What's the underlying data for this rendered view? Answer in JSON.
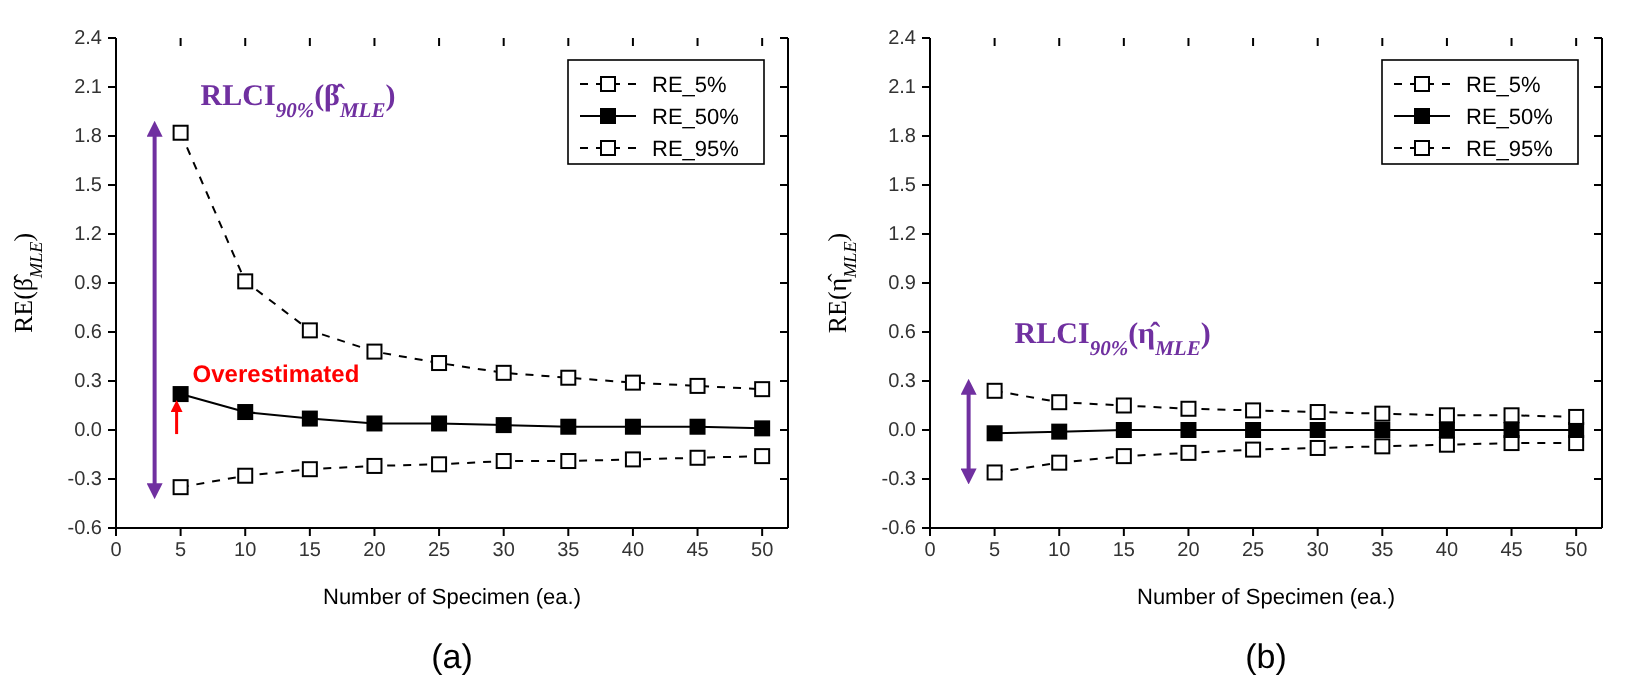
{
  "chart_data": [
    {
      "type": "line",
      "title": "(a)",
      "xlabel": "Number of Specimen (ea.)",
      "ylabel": "RE(β̂$_{MLE}$)",
      "x": [
        5,
        10,
        15,
        20,
        25,
        30,
        35,
        40,
        45,
        50
      ],
      "xlim": [
        0,
        52
      ],
      "xticks": [
        0,
        5,
        10,
        15,
        20,
        25,
        30,
        35,
        40,
        45,
        50
      ],
      "ylim": [
        -0.6,
        2.4
      ],
      "yticks": [
        -0.6,
        -0.3,
        {
          "value": 0,
          "label": "0.0"
        },
        0.3,
        0.6,
        0.9,
        1.2,
        1.5,
        1.8,
        2.1,
        2.4
      ],
      "marker": "square",
      "legend": "top right",
      "grid": false,
      "series": [
        {
          "name": "RE_5%",
          "color": "#000000",
          "line_style": "dashed",
          "values": [
            -0.35,
            -0.28,
            -0.24,
            -0.22,
            -0.21,
            -0.19,
            -0.19,
            -0.18,
            -0.17,
            -0.16
          ]
        },
        {
          "name": "RE_50%",
          "color": "#000000",
          "line_style": "solid",
          "values": [
            0.22,
            0.11,
            0.07,
            0.04,
            0.04,
            0.03,
            0.02,
            0.02,
            0.02,
            0.01
          ]
        },
        {
          "name": "RE_95%",
          "color": "#000000",
          "line_style": "dashed",
          "values": [
            1.82,
            0.91,
            0.61,
            0.48,
            0.41,
            0.35,
            0.32,
            0.29,
            0.27,
            0.25
          ]
        }
      ],
      "annotations": [
        "RLCI$_{90%}$(β̂$_{MLE}$)",
        "Overestimated"
      ]
    },
    {
      "type": "line",
      "title": "(b)",
      "xlabel": "Number of Specimen (ea.)",
      "ylabel": "RE(η̂$_{MLE}$)",
      "x": [
        5,
        10,
        15,
        20,
        25,
        30,
        35,
        40,
        45,
        50
      ],
      "xlim": [
        0,
        52
      ],
      "xticks": [
        0,
        5,
        10,
        15,
        20,
        25,
        30,
        35,
        40,
        45,
        50
      ],
      "ylim": [
        -0.6,
        2.4
      ],
      "yticks": [
        -0.6,
        -0.3,
        {
          "value": 0,
          "label": "0.0"
        },
        0.3,
        0.6,
        0.9,
        1.2,
        1.5,
        1.8,
        2.1,
        2.4
      ],
      "marker": "square",
      "legend": "top right",
      "grid": false,
      "series": [
        {
          "name": "RE_5%",
          "color": "#000000",
          "line_style": "dashed",
          "values": [
            -0.26,
            -0.2,
            -0.16,
            -0.14,
            -0.12,
            -0.11,
            -0.1,
            -0.09,
            -0.08,
            -0.08
          ]
        },
        {
          "name": "RE_50%",
          "color": "#000000",
          "line_style": "solid",
          "values": [
            -0.02,
            -0.01,
            0,
            0,
            0,
            0,
            0,
            0,
            0,
            0
          ]
        },
        {
          "name": "RE_95%",
          "color": "#000000",
          "line_style": "dashed",
          "values": [
            0.24,
            0.17,
            0.15,
            0.13,
            0.12,
            0.11,
            0.1,
            0.09,
            0.09,
            0.08
          ]
        }
      ],
      "annotations": [
        "RLCI$_{90%}$(η̂$_{MLE}$)"
      ]
    }
  ]
}
